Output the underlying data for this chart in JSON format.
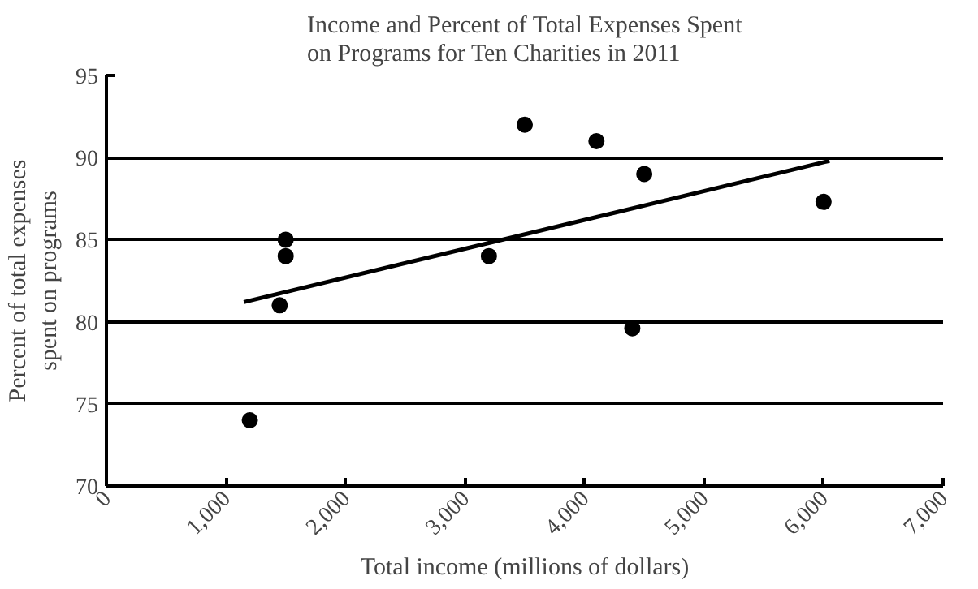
{
  "chart_data": {
    "type": "scatter",
    "title": "Income and Percent of Total Expenses Spent\non Programs for Ten Charities in 2011",
    "xlabel": "Total income (millions of dollars)",
    "ylabel": "Percent of total expenses\nspent on programs",
    "x": [
      1200,
      1500,
      1500,
      1450,
      3200,
      3500,
      4100,
      4500,
      4400,
      6000
    ],
    "series": [
      {
        "marker": "circle",
        "color": "#000000",
        "values": [
          74,
          85,
          84,
          81,
          84,
          92,
          91,
          89,
          79.6,
          87.3
        ]
      },
      {
        "type": "line",
        "color": "#000000",
        "x": [
          1150,
          6050
        ],
        "values": [
          81.2,
          89.8
        ]
      }
    ],
    "xlim": [
      0,
      7000
    ],
    "ylim": [
      70,
      95
    ],
    "xticks": [
      0,
      {
        "value": 1000,
        "label": "1,000"
      },
      {
        "value": 2000,
        "label": "2,000"
      },
      {
        "value": 3000,
        "label": "3,000"
      },
      {
        "value": 4000,
        "label": "4,000"
      },
      {
        "value": 5000,
        "label": "5,000"
      },
      {
        "value": 6000,
        "label": "6,000"
      },
      {
        "value": 7000,
        "label": "7,000"
      }
    ],
    "yticks": [
      70,
      75,
      80,
      85,
      90,
      95
    ],
    "grid": "y",
    "line_style": "solid"
  }
}
